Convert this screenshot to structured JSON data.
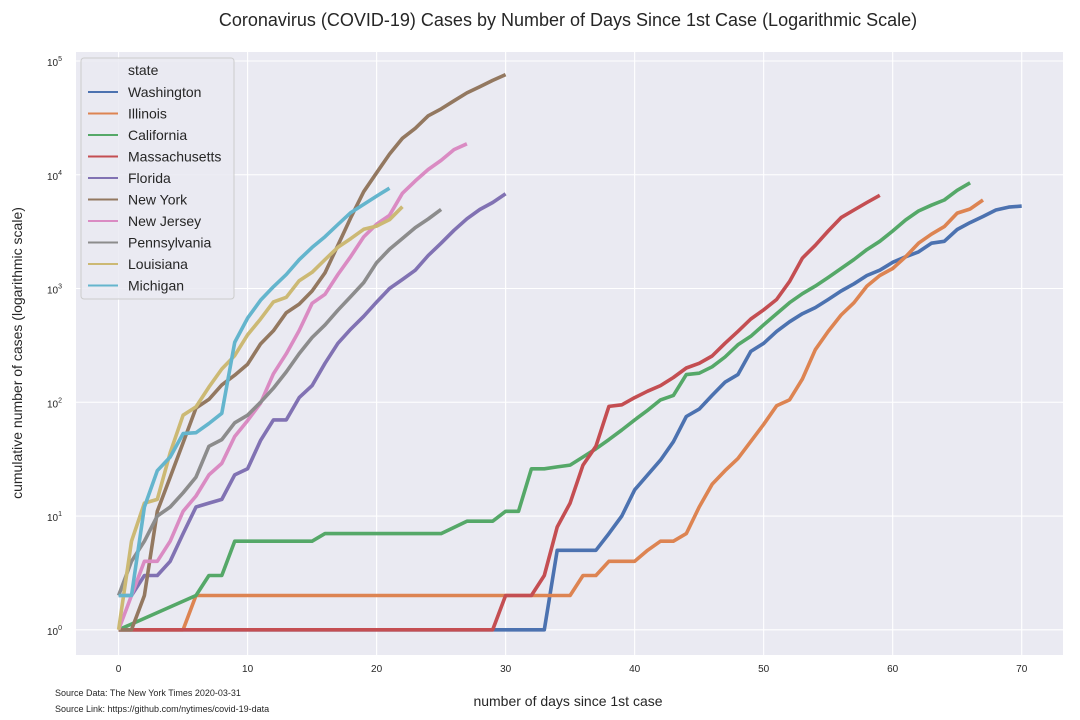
{
  "chart_data": {
    "type": "line",
    "title": "Coronavirus (COVID-19) Cases by Number of Days Since 1st Case (Logarithmic Scale)",
    "xlabel": "number of days since 1st case",
    "ylabel": "cumulative number of cases (logarithmic scale)",
    "xlim": [
      -3.3,
      73.2
    ],
    "ylim": [
      0.6,
      120000
    ],
    "yscale": "log",
    "xticks": [
      0,
      10,
      20,
      30,
      40,
      50,
      60,
      70
    ],
    "yticks": [
      {
        "value": 1,
        "base": "10",
        "exp": "0"
      },
      {
        "value": 10,
        "base": "10",
        "exp": "1"
      },
      {
        "value": 100,
        "base": "10",
        "exp": "2"
      },
      {
        "value": 1000,
        "base": "10",
        "exp": "3"
      },
      {
        "value": 10000,
        "base": "10",
        "exp": "4"
      },
      {
        "value": 100000,
        "base": "10",
        "exp": "5"
      }
    ],
    "grid": true,
    "legend_title": "state",
    "legend_position": "top-left",
    "series": [
      {
        "name": "Washington",
        "color": "#4c72b0",
        "x": [
          0,
          29,
          33,
          34,
          37,
          38,
          39,
          40,
          41,
          42,
          43,
          44,
          45,
          46,
          47,
          48,
          49,
          50,
          51,
          52,
          53,
          54,
          55,
          56,
          57,
          58,
          59,
          60,
          61,
          62,
          63,
          64,
          65,
          66,
          67,
          68,
          69,
          70
        ],
        "y": [
          1,
          1,
          1,
          5,
          5,
          7,
          10,
          17,
          23,
          31,
          45,
          75,
          87,
          115,
          150,
          175,
          280,
          330,
          420,
          510,
          600,
          680,
          800,
          950,
          1100,
          1300,
          1450,
          1700,
          1900,
          2100,
          2500,
          2600,
          3300,
          3800,
          4300,
          4900,
          5200,
          5300
        ]
      },
      {
        "name": "Illinois",
        "color": "#dd8452",
        "x": [
          0,
          5,
          6,
          35,
          36,
          37,
          38,
          40,
          41,
          42,
          43,
          44,
          45,
          46,
          47,
          48,
          50,
          51,
          52,
          53,
          54,
          55,
          56,
          57,
          58,
          59,
          60,
          61,
          62,
          63,
          64,
          65,
          66,
          67
        ],
        "y": [
          1,
          1,
          2,
          2,
          3,
          3,
          4,
          4,
          5,
          6,
          6,
          7,
          12,
          19,
          25,
          32,
          64,
          93,
          105,
          160,
          290,
          420,
          585,
          750,
          1050,
          1300,
          1500,
          1900,
          2500,
          3000,
          3500,
          4600,
          5000,
          6000
        ]
      },
      {
        "name": "California",
        "color": "#55a868",
        "x": [
          0,
          6,
          7,
          8,
          9,
          15,
          16,
          25,
          27,
          29,
          30,
          31,
          32,
          33,
          34,
          35,
          36,
          37,
          38,
          39,
          40,
          41,
          42,
          43,
          44,
          45,
          46,
          47,
          48,
          49,
          50,
          51,
          52,
          53,
          54,
          55,
          56,
          57,
          58,
          59,
          60,
          61,
          62,
          63,
          64,
          65,
          66
        ],
        "y": [
          1,
          2,
          3,
          3,
          6,
          6,
          7,
          7,
          9,
          9,
          11,
          11,
          26,
          26,
          27,
          28,
          33,
          39,
          47,
          57,
          70,
          85,
          105,
          115,
          175,
          180,
          205,
          250,
          320,
          380,
          480,
          600,
          750,
          900,
          1050,
          1250,
          1500,
          1800,
          2200,
          2600,
          3200,
          4000,
          4800,
          5400,
          6000,
          7300,
          8500
        ]
      },
      {
        "name": "Massachusetts",
        "color": "#c44e52",
        "x": [
          0,
          29,
          30,
          31,
          32,
          33,
          34,
          35,
          36,
          37,
          38,
          39,
          40,
          41,
          42,
          43,
          44,
          45,
          46,
          47,
          48,
          49,
          50,
          51,
          52,
          53,
          54,
          55,
          56,
          57,
          58,
          59
        ],
        "y": [
          1,
          1,
          2,
          2,
          2,
          3,
          8,
          13,
          28,
          41,
          92,
          95,
          110,
          125,
          140,
          165,
          200,
          220,
          255,
          330,
          420,
          540,
          650,
          800,
          1150,
          1850,
          2400,
          3200,
          4200,
          4900,
          5700,
          6600
        ]
      },
      {
        "name": "Florida",
        "color": "#8172b3",
        "x": [
          0,
          1,
          2,
          3,
          4,
          5,
          6,
          7,
          8,
          9,
          10,
          11,
          12,
          13,
          14,
          15,
          16,
          17,
          18,
          19,
          20,
          21,
          22,
          23,
          24,
          25,
          26,
          27,
          28,
          29,
          30
        ],
        "y": [
          2,
          2,
          3,
          3,
          4,
          7,
          12,
          13,
          14,
          23,
          26,
          46,
          70,
          70,
          110,
          140,
          220,
          330,
          440,
          570,
          760,
          1000,
          1200,
          1450,
          1950,
          2500,
          3250,
          4100,
          4950,
          5700,
          6800
        ]
      },
      {
        "name": "New York",
        "color": "#937860",
        "x": [
          0,
          1,
          2,
          3,
          4,
          5,
          6,
          7,
          8,
          9,
          10,
          11,
          12,
          13,
          14,
          15,
          16,
          17,
          18,
          19,
          20,
          21,
          22,
          23,
          24,
          25,
          26,
          27,
          28,
          29,
          30
        ],
        "y": [
          1,
          1,
          2,
          11,
          22,
          44,
          89,
          106,
          142,
          173,
          216,
          325,
          425,
          613,
          730,
          950,
          1374,
          2400,
          4200,
          7100,
          10400,
          15200,
          20900,
          25600,
          33000,
          37900,
          44700,
          52400,
          59500,
          67500,
          76000
        ]
      },
      {
        "name": "New Jersey",
        "color": "#da8bc3",
        "x": [
          0,
          1,
          2,
          3,
          4,
          5,
          6,
          7,
          8,
          9,
          10,
          11,
          12,
          13,
          14,
          15,
          16,
          17,
          18,
          19,
          20,
          21,
          22,
          23,
          24,
          25,
          26,
          27
        ],
        "y": [
          1,
          2,
          4,
          4,
          6,
          11,
          15,
          23,
          29,
          50,
          69,
          98,
          178,
          267,
          427,
          742,
          890,
          1327,
          1914,
          2844,
          3675,
          4402,
          6876,
          8825,
          11124,
          13386,
          16636,
          18696
        ]
      },
      {
        "name": "Pennsylvania",
        "color": "#8c8c8c",
        "x": [
          0,
          1,
          2,
          3,
          4,
          5,
          6,
          7,
          8,
          9,
          10,
          11,
          12,
          13,
          14,
          15,
          16,
          17,
          18,
          19,
          20,
          21,
          22,
          23,
          24,
          25
        ],
        "y": [
          2,
          4,
          6,
          10,
          12,
          16,
          22,
          41,
          47,
          66,
          77,
          100,
          133,
          185,
          268,
          371,
          479,
          644,
          851,
          1127,
          1687,
          2218,
          2751,
          3432,
          4087,
          4964
        ]
      },
      {
        "name": "Louisiana",
        "color": "#ccb974",
        "x": [
          0,
          1,
          2,
          3,
          4,
          5,
          6,
          7,
          8,
          9,
          10,
          11,
          12,
          13,
          14,
          15,
          16,
          17,
          18,
          19,
          20,
          21,
          22
        ],
        "y": [
          1,
          6,
          13,
          14,
          36,
          77,
          91,
          136,
          196,
          257,
          392,
          538,
          763,
          837,
          1172,
          1388,
          1795,
          2305,
          2746,
          3315,
          3540,
          4025,
          5237
        ]
      },
      {
        "name": "Michigan",
        "color": "#64b5cd",
        "x": [
          0,
          1,
          2,
          3,
          4,
          5,
          6,
          7,
          8,
          9,
          10,
          11,
          12,
          13,
          14,
          15,
          16,
          17,
          18,
          19,
          20,
          21
        ],
        "y": [
          2,
          2,
          12,
          25,
          33,
          53,
          54,
          65,
          80,
          336,
          549,
          787,
          1035,
          1329,
          1793,
          2296,
          2856,
          3657,
          4650,
          5486,
          6498,
          7615
        ]
      }
    ]
  },
  "source": {
    "data_text": "Source Data: The New York Times 2020-03-31",
    "link_text": "Source Link: https://github.com/nytimes/covid-19-data"
  }
}
